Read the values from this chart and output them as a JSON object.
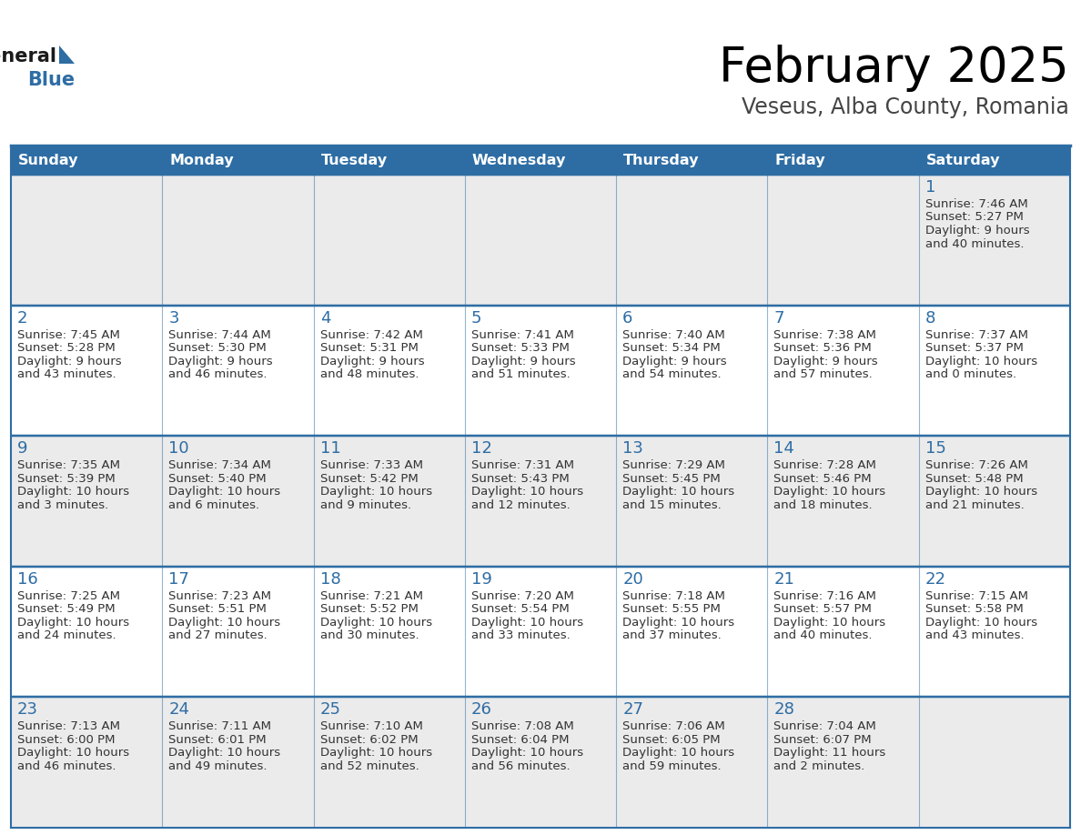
{
  "title": "February 2025",
  "subtitle": "Veseus, Alba County, Romania",
  "days_of_week": [
    "Sunday",
    "Monday",
    "Tuesday",
    "Wednesday",
    "Thursday",
    "Friday",
    "Saturday"
  ],
  "header_bg": "#2E6DA4",
  "header_text": "#FFFFFF",
  "cell_bg_gray": "#EBEBEB",
  "cell_bg_white": "#FFFFFF",
  "grid_line_color": "#2E6DA4",
  "day_number_color": "#2E6DA4",
  "cell_text_color": "#333333",
  "title_color": "#000000",
  "subtitle_color": "#444444",
  "logo_general_color": "#1a1a1a",
  "logo_blue_color": "#2E6DA4",
  "calendar": [
    [
      null,
      null,
      null,
      null,
      null,
      null,
      1
    ],
    [
      2,
      3,
      4,
      5,
      6,
      7,
      8
    ],
    [
      9,
      10,
      11,
      12,
      13,
      14,
      15
    ],
    [
      16,
      17,
      18,
      19,
      20,
      21,
      22
    ],
    [
      23,
      24,
      25,
      26,
      27,
      28,
      null
    ]
  ],
  "cell_data": {
    "1": {
      "sunrise": "7:46 AM",
      "sunset": "5:27 PM",
      "daylight": "9 hours and 40 minutes."
    },
    "2": {
      "sunrise": "7:45 AM",
      "sunset": "5:28 PM",
      "daylight": "9 hours and 43 minutes."
    },
    "3": {
      "sunrise": "7:44 AM",
      "sunset": "5:30 PM",
      "daylight": "9 hours and 46 minutes."
    },
    "4": {
      "sunrise": "7:42 AM",
      "sunset": "5:31 PM",
      "daylight": "9 hours and 48 minutes."
    },
    "5": {
      "sunrise": "7:41 AM",
      "sunset": "5:33 PM",
      "daylight": "9 hours and 51 minutes."
    },
    "6": {
      "sunrise": "7:40 AM",
      "sunset": "5:34 PM",
      "daylight": "9 hours and 54 minutes."
    },
    "7": {
      "sunrise": "7:38 AM",
      "sunset": "5:36 PM",
      "daylight": "9 hours and 57 minutes."
    },
    "8": {
      "sunrise": "7:37 AM",
      "sunset": "5:37 PM",
      "daylight": "10 hours and 0 minutes."
    },
    "9": {
      "sunrise": "7:35 AM",
      "sunset": "5:39 PM",
      "daylight": "10 hours and 3 minutes."
    },
    "10": {
      "sunrise": "7:34 AM",
      "sunset": "5:40 PM",
      "daylight": "10 hours and 6 minutes."
    },
    "11": {
      "sunrise": "7:33 AM",
      "sunset": "5:42 PM",
      "daylight": "10 hours and 9 minutes."
    },
    "12": {
      "sunrise": "7:31 AM",
      "sunset": "5:43 PM",
      "daylight": "10 hours and 12 minutes."
    },
    "13": {
      "sunrise": "7:29 AM",
      "sunset": "5:45 PM",
      "daylight": "10 hours and 15 minutes."
    },
    "14": {
      "sunrise": "7:28 AM",
      "sunset": "5:46 PM",
      "daylight": "10 hours and 18 minutes."
    },
    "15": {
      "sunrise": "7:26 AM",
      "sunset": "5:48 PM",
      "daylight": "10 hours and 21 minutes."
    },
    "16": {
      "sunrise": "7:25 AM",
      "sunset": "5:49 PM",
      "daylight": "10 hours and 24 minutes."
    },
    "17": {
      "sunrise": "7:23 AM",
      "sunset": "5:51 PM",
      "daylight": "10 hours and 27 minutes."
    },
    "18": {
      "sunrise": "7:21 AM",
      "sunset": "5:52 PM",
      "daylight": "10 hours and 30 minutes."
    },
    "19": {
      "sunrise": "7:20 AM",
      "sunset": "5:54 PM",
      "daylight": "10 hours and 33 minutes."
    },
    "20": {
      "sunrise": "7:18 AM",
      "sunset": "5:55 PM",
      "daylight": "10 hours and 37 minutes."
    },
    "21": {
      "sunrise": "7:16 AM",
      "sunset": "5:57 PM",
      "daylight": "10 hours and 40 minutes."
    },
    "22": {
      "sunrise": "7:15 AM",
      "sunset": "5:58 PM",
      "daylight": "10 hours and 43 minutes."
    },
    "23": {
      "sunrise": "7:13 AM",
      "sunset": "6:00 PM",
      "daylight": "10 hours and 46 minutes."
    },
    "24": {
      "sunrise": "7:11 AM",
      "sunset": "6:01 PM",
      "daylight": "10 hours and 49 minutes."
    },
    "25": {
      "sunrise": "7:10 AM",
      "sunset": "6:02 PM",
      "daylight": "10 hours and 52 minutes."
    },
    "26": {
      "sunrise": "7:08 AM",
      "sunset": "6:04 PM",
      "daylight": "10 hours and 56 minutes."
    },
    "27": {
      "sunrise": "7:06 AM",
      "sunset": "6:05 PM",
      "daylight": "10 hours and 59 minutes."
    },
    "28": {
      "sunrise": "7:04 AM",
      "sunset": "6:07 PM",
      "daylight": "11 hours and 2 minutes."
    }
  }
}
